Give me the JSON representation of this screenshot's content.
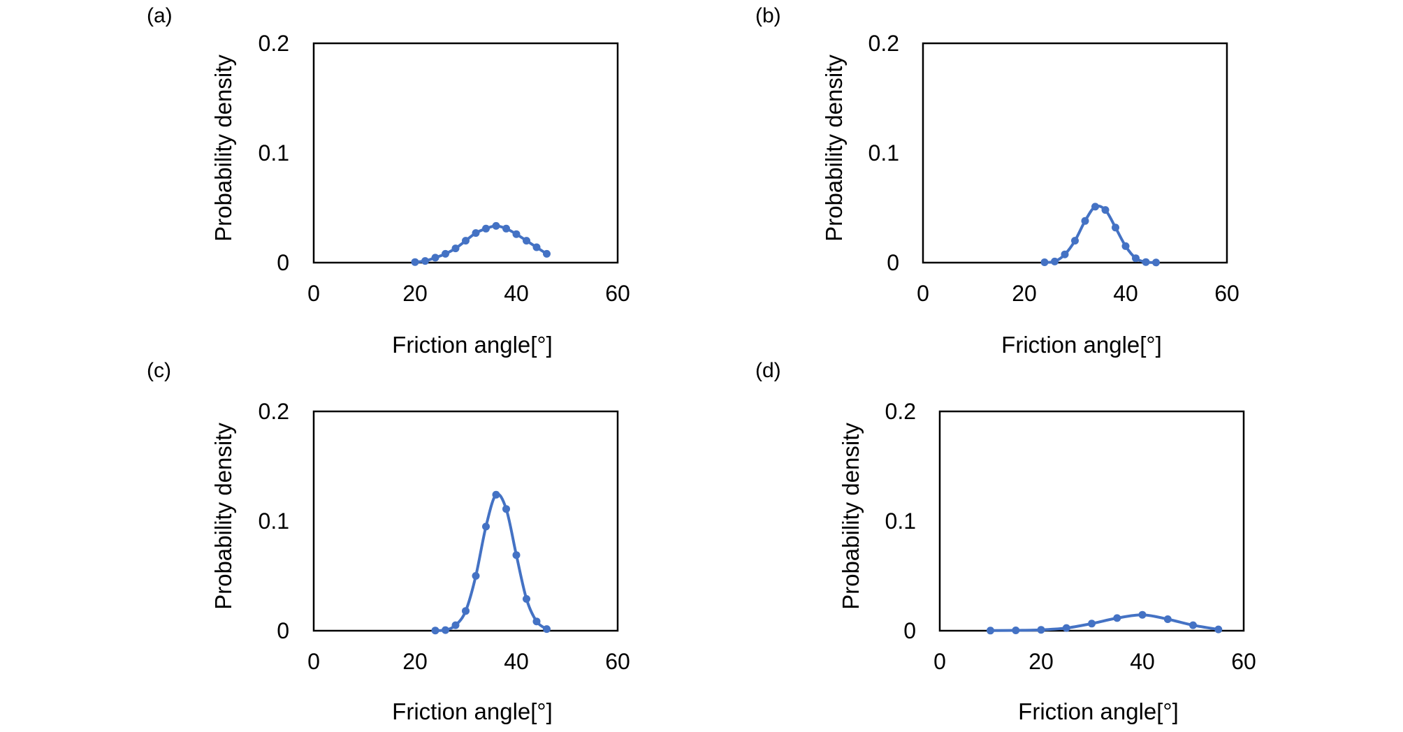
{
  "figure": {
    "series_color": "#4472C4"
  },
  "chart_data": [
    {
      "type": "line",
      "panel_label": "(a)",
      "xlabel": "Friction angle[°]",
      "ylabel": "Probability density",
      "xlim": [
        0,
        60
      ],
      "ylim": [
        0,
        0.2
      ],
      "x_ticks": [
        0,
        20,
        40,
        60
      ],
      "y_ticks": [
        0,
        0.1,
        0.2
      ],
      "x_tick_labels": [
        "0",
        "20",
        "40",
        "60"
      ],
      "y_tick_labels": [
        "0",
        "0.1",
        "0.2"
      ],
      "grid": false,
      "legend": "none",
      "series": [
        {
          "x": [
            20,
            22,
            24,
            26,
            28,
            30,
            32,
            34,
            36,
            38,
            40,
            42,
            44,
            46
          ],
          "y": [
            0.0005,
            0.0015,
            0.0045,
            0.008,
            0.013,
            0.02,
            0.027,
            0.031,
            0.0335,
            0.031,
            0.026,
            0.02,
            0.014,
            0.008
          ]
        }
      ]
    },
    {
      "type": "line",
      "panel_label": "(b)",
      "xlabel": "Friction angle[°]",
      "ylabel": "Probability density",
      "xlim": [
        0,
        60
      ],
      "ylim": [
        0,
        0.2
      ],
      "x_ticks": [
        0,
        20,
        40,
        60
      ],
      "y_ticks": [
        0,
        0.1,
        0.2
      ],
      "x_tick_labels": [
        "0",
        "20",
        "40",
        "60"
      ],
      "y_tick_labels": [
        "0",
        "0.1",
        "0.2"
      ],
      "grid": false,
      "legend": "none",
      "series": [
        {
          "x": [
            24,
            26,
            28,
            30,
            32,
            34,
            36,
            38,
            40,
            42,
            44,
            46
          ],
          "y": [
            0.0003,
            0.001,
            0.0075,
            0.02,
            0.038,
            0.051,
            0.048,
            0.032,
            0.015,
            0.004,
            0.0005,
            0.0001
          ]
        }
      ]
    },
    {
      "type": "line",
      "panel_label": "(c)",
      "xlabel": "Friction angle[°]",
      "ylabel": "Probability density",
      "xlim": [
        0,
        60
      ],
      "ylim": [
        0,
        0.2
      ],
      "x_ticks": [
        0,
        20,
        40,
        60
      ],
      "y_ticks": [
        0,
        0.1,
        0.2
      ],
      "x_tick_labels": [
        "0",
        "20",
        "40",
        "60"
      ],
      "y_tick_labels": [
        "0",
        "0.1",
        "0.2"
      ],
      "grid": false,
      "legend": "none",
      "series": [
        {
          "x": [
            24,
            26,
            28,
            30,
            32,
            34,
            36,
            38,
            40,
            42,
            44,
            46
          ],
          "y": [
            0.0002,
            0.0006,
            0.005,
            0.018,
            0.05,
            0.095,
            0.124,
            0.111,
            0.069,
            0.029,
            0.0085,
            0.0015
          ]
        }
      ]
    },
    {
      "type": "line",
      "panel_label": "(d)",
      "xlabel": "Friction angle[°]",
      "ylabel": "Probability density",
      "xlim": [
        0,
        60
      ],
      "ylim": [
        0,
        0.2
      ],
      "x_ticks": [
        0,
        20,
        40,
        60
      ],
      "y_ticks": [
        0,
        0.1,
        0.2
      ],
      "x_tick_labels": [
        "0",
        "20",
        "40",
        "60"
      ],
      "y_tick_labels": [
        "0",
        "0.1",
        "0.2"
      ],
      "grid": false,
      "legend": "none",
      "series": [
        {
          "x": [
            10,
            15,
            20,
            25,
            30,
            35,
            40,
            45,
            50,
            55
          ],
          "y": [
            0.0001,
            0.0003,
            0.0008,
            0.0025,
            0.0065,
            0.0115,
            0.0145,
            0.0105,
            0.005,
            0.0012
          ]
        }
      ]
    }
  ]
}
